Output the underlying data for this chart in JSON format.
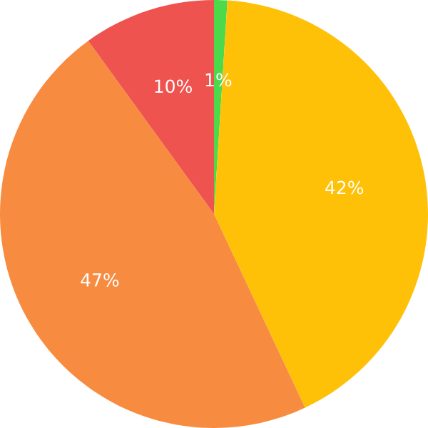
{
  "chart_data": {
    "type": "pie",
    "categories": [
      null,
      null,
      null,
      null
    ],
    "values": [
      1,
      42,
      47,
      10
    ],
    "colors": [
      "#4cd94a",
      "#ffc107",
      "#f78c40",
      "#ef5350"
    ],
    "value_labels": [
      "1%",
      "42%",
      "47%",
      "10%"
    ]
  }
}
